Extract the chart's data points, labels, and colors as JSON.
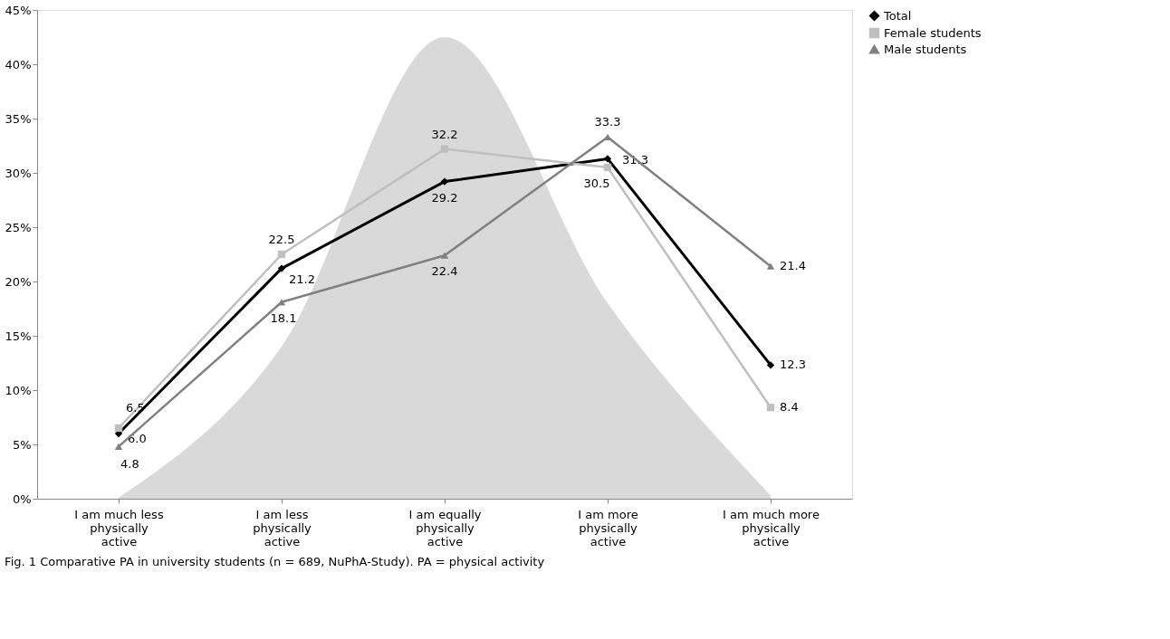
{
  "chart_data": {
    "type": "line",
    "categories": [
      "I am much less physically active",
      "I am less physically active",
      "I am equally physically active",
      "I am more physically active",
      "I am much more physically active"
    ],
    "series": [
      {
        "type": "area",
        "color": "#d9d9d9",
        "values": [
          0.1,
          14,
          42.5,
          18,
          0.3
        ]
      },
      {
        "name": "Total",
        "color": "#000000",
        "marker": "diamond",
        "values": [
          6.0,
          21.2,
          29.2,
          31.3,
          12.3
        ],
        "value_labels": [
          "6.0",
          "21.2",
          "29.2",
          "31.3",
          "12.3"
        ]
      },
      {
        "name": "Female students",
        "color": "#bfbfbf",
        "marker": "square",
        "values": [
          6.5,
          22.5,
          32.2,
          30.5,
          8.4
        ],
        "value_labels": [
          "6.5",
          "22.5",
          "32.2",
          "30.5",
          "8.4"
        ]
      },
      {
        "name": "Male students",
        "color": "#808080",
        "marker": "triangle",
        "values": [
          4.8,
          18.1,
          22.4,
          33.3,
          21.4
        ],
        "value_labels": [
          "4.8",
          "18.1",
          "22.4",
          "33.3",
          "21.4"
        ]
      }
    ],
    "ylim": [
      0,
      45
    ],
    "yticks": [
      {
        "value": 0,
        "label": "0%"
      },
      {
        "value": 5,
        "label": "5%"
      },
      {
        "value": 10,
        "label": "10%"
      },
      {
        "value": 15,
        "label": "15%"
      },
      {
        "value": 20,
        "label": "20%"
      },
      {
        "value": 25,
        "label": "25%"
      },
      {
        "value": 30,
        "label": "30%"
      },
      {
        "value": 35,
        "label": "35%"
      },
      {
        "value": 40,
        "label": "40%"
      },
      {
        "value": 45,
        "label": "45%"
      }
    ],
    "grid": false,
    "legend": "right",
    "annotations": [
      "Fig. 1 Comparative PA in university students (n = 689, NuPhA-Study). PA = physical activity"
    ]
  }
}
